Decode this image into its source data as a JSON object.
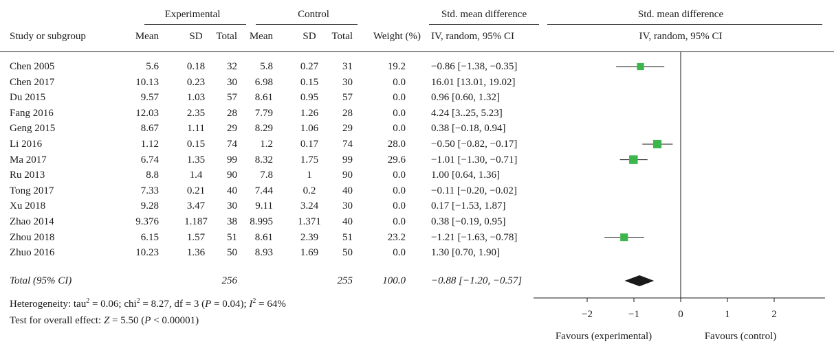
{
  "headers": {
    "group_experimental": "Experimental",
    "group_control": "Control",
    "smd_text_top": "Std. mean difference",
    "smd_plot_top": "Std. mean difference",
    "study": "Study or subgroup",
    "mean_e": "Mean",
    "sd_e": "SD",
    "total_e": "Total",
    "mean_c": "Mean",
    "sd_c": "SD",
    "total_c": "Total",
    "weight": "Weight (%)",
    "method_text": "IV, random, 95% CI",
    "method_plot": "IV, random, 95% CI"
  },
  "total_row": {
    "label": "Total (95% CI)",
    "total_e": "256",
    "total_c": "255",
    "weight": "100.0",
    "ci": "−0.88 [−1.20, −0.57]"
  },
  "footer": {
    "heterogeneity_prefix": "Heterogeneity: tau",
    "heterogeneity_mid1": " = 0.06; chi",
    "heterogeneity_mid2": " = 8.27, df = 3 (",
    "heterogeneity_p": "P",
    "heterogeneity_mid3": " = 0.04); ",
    "heterogeneity_i": "I",
    "heterogeneity_end": " = 64%",
    "sup2": "2",
    "overall_prefix": "Test for overall effect: ",
    "overall_z": "Z",
    "overall_mid": " = 5.50 (",
    "overall_p": "P",
    "overall_end": " < 0.00001)"
  },
  "colors": {
    "marker": "#3cb54a",
    "diamond": "#1a1a1a",
    "line": "#1a1a1a"
  },
  "chart_data": {
    "type": "forest",
    "x_ticks": [
      "−2",
      "−1",
      "0",
      "1",
      "2"
    ],
    "xlim": [
      -2.5,
      2.5
    ],
    "favours_left": "Favours (experimental)",
    "favours_right": "Favours (control)",
    "studies": [
      {
        "study": "Chen 2005",
        "mean_e": "5.6",
        "sd_e": "0.18",
        "total_e": "32",
        "mean_c": "5.8",
        "sd_c": "0.27",
        "total_c": "31",
        "weight": "19.2",
        "ci_text": "−0.86 [−1.38, −0.35]",
        "est": -0.86,
        "lo": -1.38,
        "hi": -0.35,
        "shown": true
      },
      {
        "study": "Chen 2017",
        "mean_e": "10.13",
        "sd_e": "0.23",
        "total_e": "30",
        "mean_c": "6.98",
        "sd_c": "0.15",
        "total_c": "30",
        "weight": "0.0",
        "ci_text": "16.01 [13.01, 19.02]",
        "est": 16.01,
        "lo": 13.01,
        "hi": 19.02,
        "shown": false
      },
      {
        "study": "Du 2015",
        "mean_e": "9.57",
        "sd_e": "1.03",
        "total_e": "57",
        "mean_c": "8.61",
        "sd_c": "0.95",
        "total_c": "57",
        "weight": "0.0",
        "ci_text": "0.96 [0.60, 1.32]",
        "est": 0.96,
        "lo": 0.6,
        "hi": 1.32,
        "shown": false
      },
      {
        "study": "Fang 2016",
        "mean_e": "12.03",
        "sd_e": "2.35",
        "total_e": "28",
        "mean_c": "7.79",
        "sd_c": "1.26",
        "total_c": "28",
        "weight": "0.0",
        "ci_text": "4.24 [3..25, 5.23]",
        "est": 4.24,
        "lo": 3.25,
        "hi": 5.23,
        "shown": false
      },
      {
        "study": "Geng 2015",
        "mean_e": "8.67",
        "sd_e": "1.11",
        "total_e": "29",
        "mean_c": "8.29",
        "sd_c": "1.06",
        "total_c": "29",
        "weight": "0.0",
        "ci_text": "0.38 [−0.18, 0.94]",
        "est": 0.38,
        "lo": -0.18,
        "hi": 0.94,
        "shown": false
      },
      {
        "study": "Li 2016",
        "mean_e": "1.12",
        "sd_e": "0.15",
        "total_e": "74",
        "mean_c": "1.2",
        "sd_c": "0.17",
        "total_c": "74",
        "weight": "28.0",
        "ci_text": "−0.50 [−0.82, −0.17]",
        "est": -0.5,
        "lo": -0.82,
        "hi": -0.17,
        "shown": true
      },
      {
        "study": "Ma 2017",
        "mean_e": "6.74",
        "sd_e": "1.35",
        "total_e": "99",
        "mean_c": "8.32",
        "sd_c": "1.75",
        "total_c": "99",
        "weight": "29.6",
        "ci_text": "−1.01 [−1.30, −0.71]",
        "est": -1.01,
        "lo": -1.3,
        "hi": -0.71,
        "shown": true
      },
      {
        "study": "Ru 2013",
        "mean_e": "8.8",
        "sd_e": "1.4",
        "total_e": "90",
        "mean_c": "7.8",
        "sd_c": "1",
        "total_c": "90",
        "weight": "0.0",
        "ci_text": "1.00 [0.64, 1.36]",
        "est": 1.0,
        "lo": 0.64,
        "hi": 1.36,
        "shown": false
      },
      {
        "study": "Tong 2017",
        "mean_e": "7.33",
        "sd_e": "0.21",
        "total_e": "40",
        "mean_c": "7.44",
        "sd_c": "0.2",
        "total_c": "40",
        "weight": "0.0",
        "ci_text": "−0.11 [−0.20, −0.02]",
        "est": -0.11,
        "lo": -0.2,
        "hi": -0.02,
        "shown": false
      },
      {
        "study": "Xu 2018",
        "mean_e": "9.28",
        "sd_e": "3.47",
        "total_e": "30",
        "mean_c": "9.11",
        "sd_c": "3.24",
        "total_c": "30",
        "weight": "0.0",
        "ci_text": "0.17 [−1.53, 1.87]",
        "est": 0.17,
        "lo": -1.53,
        "hi": 1.87,
        "shown": false
      },
      {
        "study": "Zhao 2014",
        "mean_e": "9.376",
        "sd_e": "1.187",
        "total_e": "38",
        "mean_c": "8.995",
        "sd_c": "1.371",
        "total_c": "40",
        "weight": "0.0",
        "ci_text": "0.38 [−0.19, 0.95]",
        "est": 0.38,
        "lo": -0.19,
        "hi": 0.95,
        "shown": false
      },
      {
        "study": "Zhou 2018",
        "mean_e": "6.15",
        "sd_e": "1.57",
        "total_e": "51",
        "mean_c": "8.61",
        "sd_c": "2.39",
        "total_c": "51",
        "weight": "23.2",
        "ci_text": "−1.21 [−1.63, −0.78]",
        "est": -1.21,
        "lo": -1.63,
        "hi": -0.78,
        "shown": true
      },
      {
        "study": "Zhuo 2016",
        "mean_e": "10.23",
        "sd_e": "1.36",
        "total_e": "50",
        "mean_c": "8.93",
        "sd_c": "1.69",
        "total_c": "50",
        "weight": "0.0",
        "ci_text": "1.30 [0.70, 1.90]",
        "est": 1.3,
        "lo": 0.7,
        "hi": 1.9,
        "shown": false
      }
    ],
    "pooled": {
      "est": -0.88,
      "lo": -1.2,
      "hi": -0.57
    }
  }
}
